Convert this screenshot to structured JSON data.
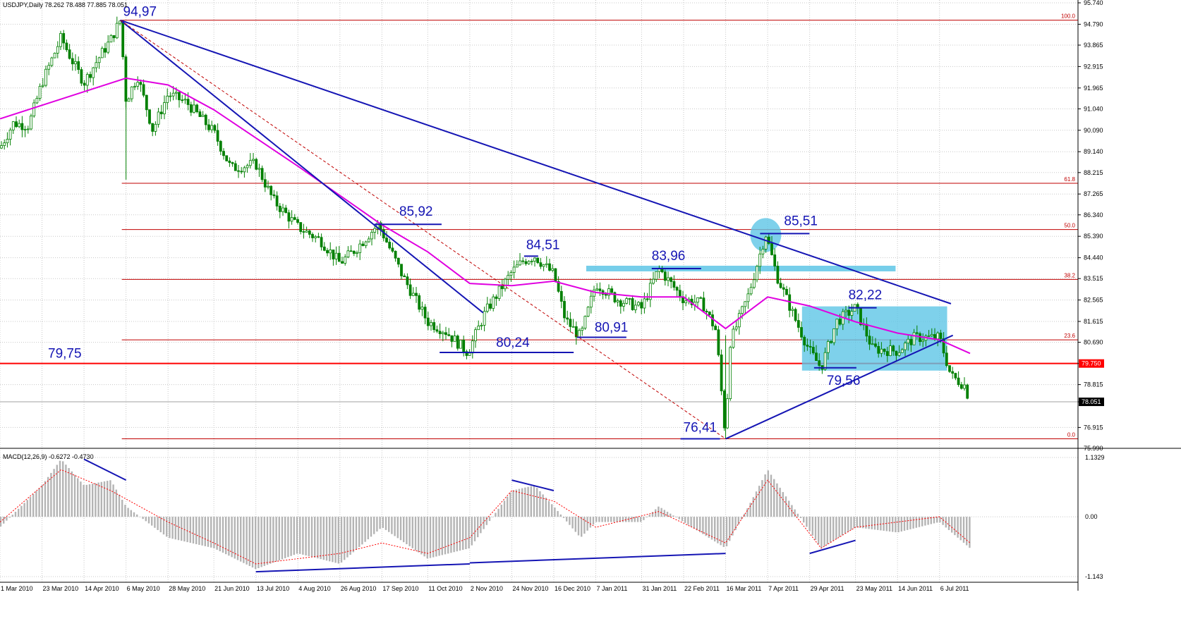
{
  "chart_data": [
    {
      "type": "candlestick",
      "header": "USDJPY,Daily  78.262 78.488 77.885 78.051",
      "symbol_timeframe": "USDJPY,Daily",
      "ohlc": {
        "open": 78.262,
        "high": 78.488,
        "low": 77.885,
        "close": 78.051
      },
      "ylim": [
        75.99,
        95.74
      ],
      "y_ticks": [
        "95.740",
        "94.790",
        "93.865",
        "92.915",
        "91.965",
        "91.040",
        "90.090",
        "89.140",
        "88.215",
        "87.265",
        "86.340",
        "85.390",
        "84.440",
        "83.515",
        "82.565",
        "81.615",
        "80.690",
        "79.750",
        "78.815",
        "78.051",
        "76.915",
        "75.990"
      ],
      "x_ticks": [
        "1 Mar 2010",
        "23 Mar 2010",
        "14 Apr 2010",
        "6 May 2010",
        "28 May 2010",
        "21 Jun 2010",
        "13 Jul 2010",
        "4 Aug 2010",
        "26 Aug 2010",
        "17 Sep 2010",
        "11 Oct 2010",
        "2 Nov 2010",
        "24 Nov 2010",
        "16 Dec 2010",
        "7 Jan 2011",
        "31 Jan 2011",
        "22 Feb 2011",
        "16 Mar 2011",
        "7 Apr 2011",
        "29 Apr 2011",
        "23 May 2011",
        "14 Jun 2011",
        "6 Jul 2011"
      ],
      "price_close_path": [
        {
          "d": "1 Mar 2010",
          "v": 89.3
        },
        {
          "d": "8 Mar 2010",
          "v": 90.4
        },
        {
          "d": "16 Mar 2010",
          "v": 90.3
        },
        {
          "d": "23 Mar 2010",
          "v": 92.2
        },
        {
          "d": "2 Apr 2010",
          "v": 94.2
        },
        {
          "d": "7 Apr 2010",
          "v": 93.3
        },
        {
          "d": "14 Apr 2010",
          "v": 92.2
        },
        {
          "d": "21 Apr 2010",
          "v": 93.2
        },
        {
          "d": "28 Apr 2010",
          "v": 94.1
        },
        {
          "d": "3 May 2010",
          "v": 94.97
        },
        {
          "d": "6 May 2010",
          "v": 91.4
        },
        {
          "d": "12 May 2010",
          "v": 92.5
        },
        {
          "d": "20 May 2010",
          "v": 90.1
        },
        {
          "d": "28 May 2010",
          "v": 91.7
        },
        {
          "d": "7 Jun 2010",
          "v": 91.3
        },
        {
          "d": "21 Jun 2010",
          "v": 90.0
        },
        {
          "d": "30 Jun 2010",
          "v": 88.4
        },
        {
          "d": "13 Jul 2010",
          "v": 88.6
        },
        {
          "d": "22 Jul 2010",
          "v": 87.0
        },
        {
          "d": "4 Aug 2010",
          "v": 85.8
        },
        {
          "d": "16 Aug 2010",
          "v": 85.2
        },
        {
          "d": "26 Aug 2010",
          "v": 84.2
        },
        {
          "d": "3 Sep 2010",
          "v": 84.8
        },
        {
          "d": "15 Sep 2010",
          "v": 85.92
        },
        {
          "d": "17 Sep 2010",
          "v": 85.6
        },
        {
          "d": "28 Sep 2010",
          "v": 83.6
        },
        {
          "d": "11 Oct 2010",
          "v": 81.6
        },
        {
          "d": "20 Oct 2010",
          "v": 81.2
        },
        {
          "d": "1 Nov 2010",
          "v": 80.24
        },
        {
          "d": "10 Nov 2010",
          "v": 82.0
        },
        {
          "d": "24 Nov 2010",
          "v": 83.8
        },
        {
          "d": "30 Nov 2010",
          "v": 84.3
        },
        {
          "d": "6 Dec 2010",
          "v": 84.51
        },
        {
          "d": "16 Dec 2010",
          "v": 83.7
        },
        {
          "d": "22 Dec 2010",
          "v": 81.7
        },
        {
          "d": "30 Dec 2010",
          "v": 80.91
        },
        {
          "d": "7 Jan 2011",
          "v": 83.3
        },
        {
          "d": "18 Jan 2011",
          "v": 82.6
        },
        {
          "d": "31 Jan 2011",
          "v": 82.2
        },
        {
          "d": "9 Feb 2011",
          "v": 83.96
        },
        {
          "d": "22 Feb 2011",
          "v": 82.6
        },
        {
          "d": "4 Mar 2011",
          "v": 82.4
        },
        {
          "d": "11 Mar 2011",
          "v": 81.2
        },
        {
          "d": "16 Mar 2011",
          "v": 76.41
        },
        {
          "d": "18 Mar 2011",
          "v": 80.6
        },
        {
          "d": "28 Mar 2011",
          "v": 82.8
        },
        {
          "d": "6 Apr 2011",
          "v": 85.51
        },
        {
          "d": "12 Apr 2011",
          "v": 83.6
        },
        {
          "d": "22 Apr 2011",
          "v": 81.6
        },
        {
          "d": "29 Apr 2011",
          "v": 80.3
        },
        {
          "d": "5 May 2011",
          "v": 79.56
        },
        {
          "d": "13 May 2011",
          "v": 81.6
        },
        {
          "d": "23 May 2011",
          "v": 82.22
        },
        {
          "d": "1 Jun 2011",
          "v": 80.4
        },
        {
          "d": "14 Jun 2011",
          "v": 80.3
        },
        {
          "d": "23 Jun 2011",
          "v": 80.9
        },
        {
          "d": "6 Jul 2011",
          "v": 80.9
        },
        {
          "d": "12 Jul 2011",
          "v": 79.2
        },
        {
          "d": "19 Jul 2011",
          "v": 78.8
        },
        {
          "d": "22 Jul 2011",
          "v": 78.051
        }
      ],
      "moving_average": [
        {
          "d": "1 Mar 2010",
          "v": 90.6
        },
        {
          "d": "6 May 2010",
          "v": 92.4
        },
        {
          "d": "28 May 2010",
          "v": 92.1
        },
        {
          "d": "21 Jun 2010",
          "v": 91.0
        },
        {
          "d": "4 Aug 2010",
          "v": 88.5
        },
        {
          "d": "17 Sep 2010",
          "v": 85.9
        },
        {
          "d": "11 Oct 2010",
          "v": 84.7
        },
        {
          "d": "2 Nov 2010",
          "v": 83.3
        },
        {
          "d": "24 Nov 2010",
          "v": 83.2
        },
        {
          "d": "16 Dec 2010",
          "v": 83.4
        },
        {
          "d": "7 Jan 2011",
          "v": 82.9
        },
        {
          "d": "31 Jan 2011",
          "v": 82.7
        },
        {
          "d": "22 Feb 2011",
          "v": 82.7
        },
        {
          "d": "16 Mar 2011",
          "v": 81.3
        },
        {
          "d": "7 Apr 2011",
          "v": 82.7
        },
        {
          "d": "29 Apr 2011",
          "v": 82.3
        },
        {
          "d": "23 May 2011",
          "v": 81.6
        },
        {
          "d": "14 Jun 2011",
          "v": 81.1
        },
        {
          "d": "6 Jul 2011",
          "v": 80.8
        },
        {
          "d": "22 Jul 2011",
          "v": 80.2
        }
      ],
      "fibonacci_levels": [
        {
          "label": "100.0",
          "v": 94.97
        },
        {
          "label": "61.8",
          "v": 87.74
        },
        {
          "label": "50.0",
          "v": 85.69
        },
        {
          "label": "38.2",
          "v": 83.48
        },
        {
          "label": "23.6",
          "v": 80.8
        },
        {
          "label": "0.0",
          "v": 76.41
        }
      ],
      "support_line": {
        "label": "79,75",
        "v": 79.75,
        "axis_label": "79.750",
        "color": "#ff0000"
      },
      "current_price": {
        "label": "78.051",
        "v": 78.051
      },
      "annotations": [
        {
          "text": "94,97",
          "d": "3 May 2010",
          "v": 94.97
        },
        {
          "text": "85,92",
          "d": "15 Sep 2010",
          "v": 85.92
        },
        {
          "text": "84,51",
          "d": "6 Dec 2010",
          "v": 84.51
        },
        {
          "text": "83,96",
          "d": "9 Feb 2011",
          "v": 83.96
        },
        {
          "text": "85,51",
          "d": "6 Apr 2011",
          "v": 85.51
        },
        {
          "text": "82,22",
          "d": "23 May 2011",
          "v": 82.22
        },
        {
          "text": "80,91",
          "d": "30 Dec 2010",
          "v": 80.91
        },
        {
          "text": "80,24",
          "d": "1 Nov 2010",
          "v": 80.24
        },
        {
          "text": "79,75",
          "d": "1 Mar 2010",
          "v": 79.75
        },
        {
          "text": "79,56",
          "d": "5 May 2011",
          "v": 79.56
        },
        {
          "text": "76,41",
          "d": "16 Mar 2011",
          "v": 76.41
        }
      ],
      "trendlines": [
        {
          "from": {
            "d": "3 May 2010",
            "v": 94.97
          },
          "to": {
            "d": "12 Jul 2011",
            "v": 82.4
          }
        },
        {
          "from": {
            "d": "3 May 2010",
            "v": 94.97
          },
          "to": {
            "d": "9 Nov 2010",
            "v": 82.0
          }
        },
        {
          "from": {
            "d": "16 Mar 2011",
            "v": 76.41
          },
          "to": {
            "d": "13 Jul 2011",
            "v": 81.0
          }
        }
      ],
      "colors": {
        "candles": "#008000",
        "trendline": "#1515b4",
        "ma": "#e000e0",
        "fib": "#c00000",
        "support": "#ff0000",
        "zone": "#5ec6e6"
      }
    },
    {
      "type": "bar",
      "header": "MACD(12,26,9) -0.6272 -0.4730",
      "indicator": "MACD(12,26,9)",
      "values_shown": {
        "macd": -0.6272,
        "signal": -0.473
      },
      "ylim": [
        -1.143,
        1.1329
      ],
      "y_ticks": [
        "1.1329",
        "0.00",
        "-1.143"
      ],
      "histogram": [
        {
          "d": "1 Mar 2010",
          "v": -0.2
        },
        {
          "d": "23 Mar 2010",
          "v": 0.6
        },
        {
          "d": "2 Apr 2010",
          "v": 1.1
        },
        {
          "d": "14 Apr 2010",
          "v": 0.6
        },
        {
          "d": "28 Apr 2010",
          "v": 0.7
        },
        {
          "d": "6 May 2010",
          "v": 0.2
        },
        {
          "d": "28 May 2010",
          "v": -0.4
        },
        {
          "d": "21 Jun 2010",
          "v": -0.6
        },
        {
          "d": "13 Jul 2010",
          "v": -1.0
        },
        {
          "d": "4 Aug 2010",
          "v": -0.7
        },
        {
          "d": "26 Aug 2010",
          "v": -0.9
        },
        {
          "d": "17 Sep 2010",
          "v": -0.2
        },
        {
          "d": "11 Oct 2010",
          "v": -0.8
        },
        {
          "d": "2 Nov 2010",
          "v": -0.6
        },
        {
          "d": "24 Nov 2010",
          "v": 0.5
        },
        {
          "d": "6 Dec 2010",
          "v": 0.6
        },
        {
          "d": "16 Dec 2010",
          "v": 0.2
        },
        {
          "d": "30 Dec 2010",
          "v": -0.4
        },
        {
          "d": "7 Jan 2011",
          "v": -0.1
        },
        {
          "d": "31 Jan 2011",
          "v": -0.1
        },
        {
          "d": "9 Feb 2011",
          "v": 0.2
        },
        {
          "d": "22 Feb 2011",
          "v": -0.1
        },
        {
          "d": "16 Mar 2011",
          "v": -0.6
        },
        {
          "d": "28 Mar 2011",
          "v": 0.2
        },
        {
          "d": "7 Apr 2011",
          "v": 0.9
        },
        {
          "d": "22 Apr 2011",
          "v": 0.1
        },
        {
          "d": "5 May 2011",
          "v": -0.6
        },
        {
          "d": "23 May 2011",
          "v": -0.2
        },
        {
          "d": "14 Jun 2011",
          "v": -0.3
        },
        {
          "d": "6 Jul 2011",
          "v": -0.1
        },
        {
          "d": "22 Jul 2011",
          "v": -0.6
        }
      ],
      "signal_line": [
        {
          "d": "1 Mar 2010",
          "v": -0.1
        },
        {
          "d": "2 Apr 2010",
          "v": 0.9
        },
        {
          "d": "28 Apr 2010",
          "v": 0.5
        },
        {
          "d": "28 May 2010",
          "v": -0.1
        },
        {
          "d": "21 Jun 2010",
          "v": -0.5
        },
        {
          "d": "13 Jul 2010",
          "v": -0.9
        },
        {
          "d": "26 Aug 2010",
          "v": -0.7
        },
        {
          "d": "17 Sep 2010",
          "v": -0.5
        },
        {
          "d": "11 Oct 2010",
          "v": -0.7
        },
        {
          "d": "2 Nov 2010",
          "v": -0.4
        },
        {
          "d": "24 Nov 2010",
          "v": 0.5
        },
        {
          "d": "16 Dec 2010",
          "v": 0.3
        },
        {
          "d": "7 Jan 2011",
          "v": -0.2
        },
        {
          "d": "9 Feb 2011",
          "v": 0.1
        },
        {
          "d": "16 Mar 2011",
          "v": -0.5
        },
        {
          "d": "7 Apr 2011",
          "v": 0.7
        },
        {
          "d": "5 May 2011",
          "v": -0.6
        },
        {
          "d": "23 May 2011",
          "v": -0.2
        },
        {
          "d": "6 Jul 2011",
          "v": 0.0
        },
        {
          "d": "22 Jul 2011",
          "v": -0.5
        }
      ],
      "divergence_lines": [
        {
          "from": {
            "d": "14 Apr 2010",
            "v": 1.1
          },
          "to": {
            "d": "6 May 2010",
            "v": 0.7
          }
        },
        {
          "from": {
            "d": "24 Nov 2010",
            "v": 0.7
          },
          "to": {
            "d": "16 Dec 2010",
            "v": 0.5
          }
        },
        {
          "from": {
            "d": "13 Jul 2010",
            "v": -1.05
          },
          "to": {
            "d": "2 Nov 2010",
            "v": -0.9
          }
        },
        {
          "from": {
            "d": "2 Nov 2010",
            "v": -0.88
          },
          "to": {
            "d": "16 Mar 2011",
            "v": -0.7
          }
        },
        {
          "from": {
            "d": "29 Apr 2011",
            "v": -0.7
          },
          "to": {
            "d": "23 May 2011",
            "v": -0.45
          }
        }
      ]
    }
  ]
}
